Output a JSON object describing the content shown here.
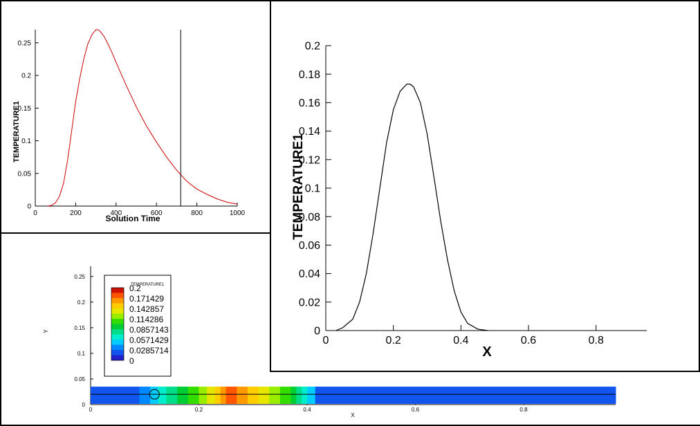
{
  "chart_data": [
    {
      "type": "line",
      "title": "",
      "xlabel": "Solution Time",
      "ylabel": "TEMPERATURE1",
      "xlim": [
        0,
        1000
      ],
      "ylim": [
        0,
        0.27
      ],
      "xticks": [
        "0",
        "200",
        "400",
        "600",
        "800",
        "1000"
      ],
      "yticks": [
        "0",
        "0.05",
        "0.1",
        "0.15",
        "0.2",
        "0.25"
      ],
      "series": [
        {
          "color": "#cc0000",
          "x": [
            60,
            80,
            100,
            120,
            140,
            160,
            180,
            200,
            220,
            240,
            260,
            280,
            300,
            310,
            320,
            340,
            360,
            380,
            400,
            450,
            500,
            550,
            600,
            650,
            700,
            750,
            800,
            850,
            900,
            950,
            1000
          ],
          "y": [
            0,
            0.001,
            0.005,
            0.015,
            0.035,
            0.07,
            0.115,
            0.16,
            0.195,
            0.225,
            0.248,
            0.262,
            0.27,
            0.27,
            0.268,
            0.26,
            0.248,
            0.235,
            0.22,
            0.185,
            0.152,
            0.123,
            0.098,
            0.075,
            0.055,
            0.038,
            0.026,
            0.018,
            0.011,
            0.006,
            0.003
          ]
        }
      ],
      "marker_line_x": 720,
      "marker_line_color": "#000000"
    },
    {
      "type": "line",
      "title": "",
      "xlabel": "X",
      "ylabel": "TEMPERATURE1",
      "xlim": [
        0,
        0.95
      ],
      "ylim": [
        0,
        0.2
      ],
      "xticks": [
        "0",
        "0.2",
        "0.4",
        "0.6",
        "0.8"
      ],
      "yticks": [
        "0",
        "0.02",
        "0.04",
        "0.06",
        "0.08",
        "0.1",
        "0.12",
        "0.14",
        "0.16",
        "0.18",
        "0.2"
      ],
      "series": [
        {
          "color": "#000000",
          "x": [
            0.03,
            0.05,
            0.08,
            0.1,
            0.12,
            0.14,
            0.16,
            0.18,
            0.2,
            0.22,
            0.24,
            0.25,
            0.26,
            0.28,
            0.3,
            0.32,
            0.34,
            0.36,
            0.38,
            0.4,
            0.42,
            0.45,
            0.48
          ],
          "y": [
            0,
            0.002,
            0.008,
            0.02,
            0.04,
            0.068,
            0.1,
            0.132,
            0.155,
            0.168,
            0.173,
            0.173,
            0.171,
            0.16,
            0.138,
            0.108,
            0.077,
            0.05,
            0.028,
            0.013,
            0.005,
            0.001,
            0
          ]
        }
      ]
    },
    {
      "type": "heatmap",
      "title": "",
      "xlabel": "X",
      "ylabel": "Y",
      "xlim": [
        0,
        0.97
      ],
      "ylim": [
        0,
        0.27
      ],
      "xticks": [
        "0",
        "0.2",
        "0.4",
        "0.6",
        "0.8"
      ],
      "yticks": [
        "0",
        "0.05",
        "0.1",
        "0.15",
        "0.2",
        "0.25"
      ],
      "legend_title": "TEMPERATURE1",
      "legend_levels": [
        "0.2",
        "0.171429",
        "0.142857",
        "0.114286",
        "0.0857143",
        "0.0571429",
        "0.0285714",
        "0"
      ],
      "legend_colors": [
        "#cc1100",
        "#ff5500",
        "#ff9900",
        "#ffcc00",
        "#e6e600",
        "#99ee00",
        "#33dd00",
        "#00cc33",
        "#00dd88",
        "#00eecc",
        "#00ccff",
        "#0088ff",
        "#1155ee",
        "#2222cc"
      ],
      "bar_y": [
        0,
        0.035
      ],
      "cell_width": 0.01,
      "segments": [
        {
          "x0": 0,
          "x1": 0.09,
          "color": "#1155ee"
        },
        {
          "x0": 0.09,
          "x1": 0.11,
          "color": "#0088ff"
        },
        {
          "x0": 0.11,
          "x1": 0.125,
          "color": "#00ccff"
        },
        {
          "x0": 0.125,
          "x1": 0.14,
          "color": "#00eecc"
        },
        {
          "x0": 0.14,
          "x1": 0.16,
          "color": "#00dd88"
        },
        {
          "x0": 0.16,
          "x1": 0.18,
          "color": "#00cc33"
        },
        {
          "x0": 0.18,
          "x1": 0.2,
          "color": "#33dd00"
        },
        {
          "x0": 0.2,
          "x1": 0.215,
          "color": "#99ee00"
        },
        {
          "x0": 0.215,
          "x1": 0.23,
          "color": "#e6e600"
        },
        {
          "x0": 0.23,
          "x1": 0.24,
          "color": "#ffcc00"
        },
        {
          "x0": 0.24,
          "x1": 0.25,
          "color": "#ff9900"
        },
        {
          "x0": 0.25,
          "x1": 0.27,
          "color": "#ff5500"
        },
        {
          "x0": 0.27,
          "x1": 0.29,
          "color": "#ff9900"
        },
        {
          "x0": 0.29,
          "x1": 0.31,
          "color": "#ffcc00"
        },
        {
          "x0": 0.31,
          "x1": 0.33,
          "color": "#e6e600"
        },
        {
          "x0": 0.33,
          "x1": 0.35,
          "color": "#99ee00"
        },
        {
          "x0": 0.35,
          "x1": 0.37,
          "color": "#33dd00"
        },
        {
          "x0": 0.37,
          "x1": 0.38,
          "color": "#00cc33"
        },
        {
          "x0": 0.38,
          "x1": 0.39,
          "color": "#00dd88"
        },
        {
          "x0": 0.39,
          "x1": 0.4,
          "color": "#00eecc"
        },
        {
          "x0": 0.4,
          "x1": 0.415,
          "color": "#00ccff"
        },
        {
          "x0": 0.415,
          "x1": 0.97,
          "color": "#1155ee"
        }
      ],
      "centerline_y": 0.02,
      "probe_x": 0.118,
      "probe_y": 0.02
    }
  ]
}
